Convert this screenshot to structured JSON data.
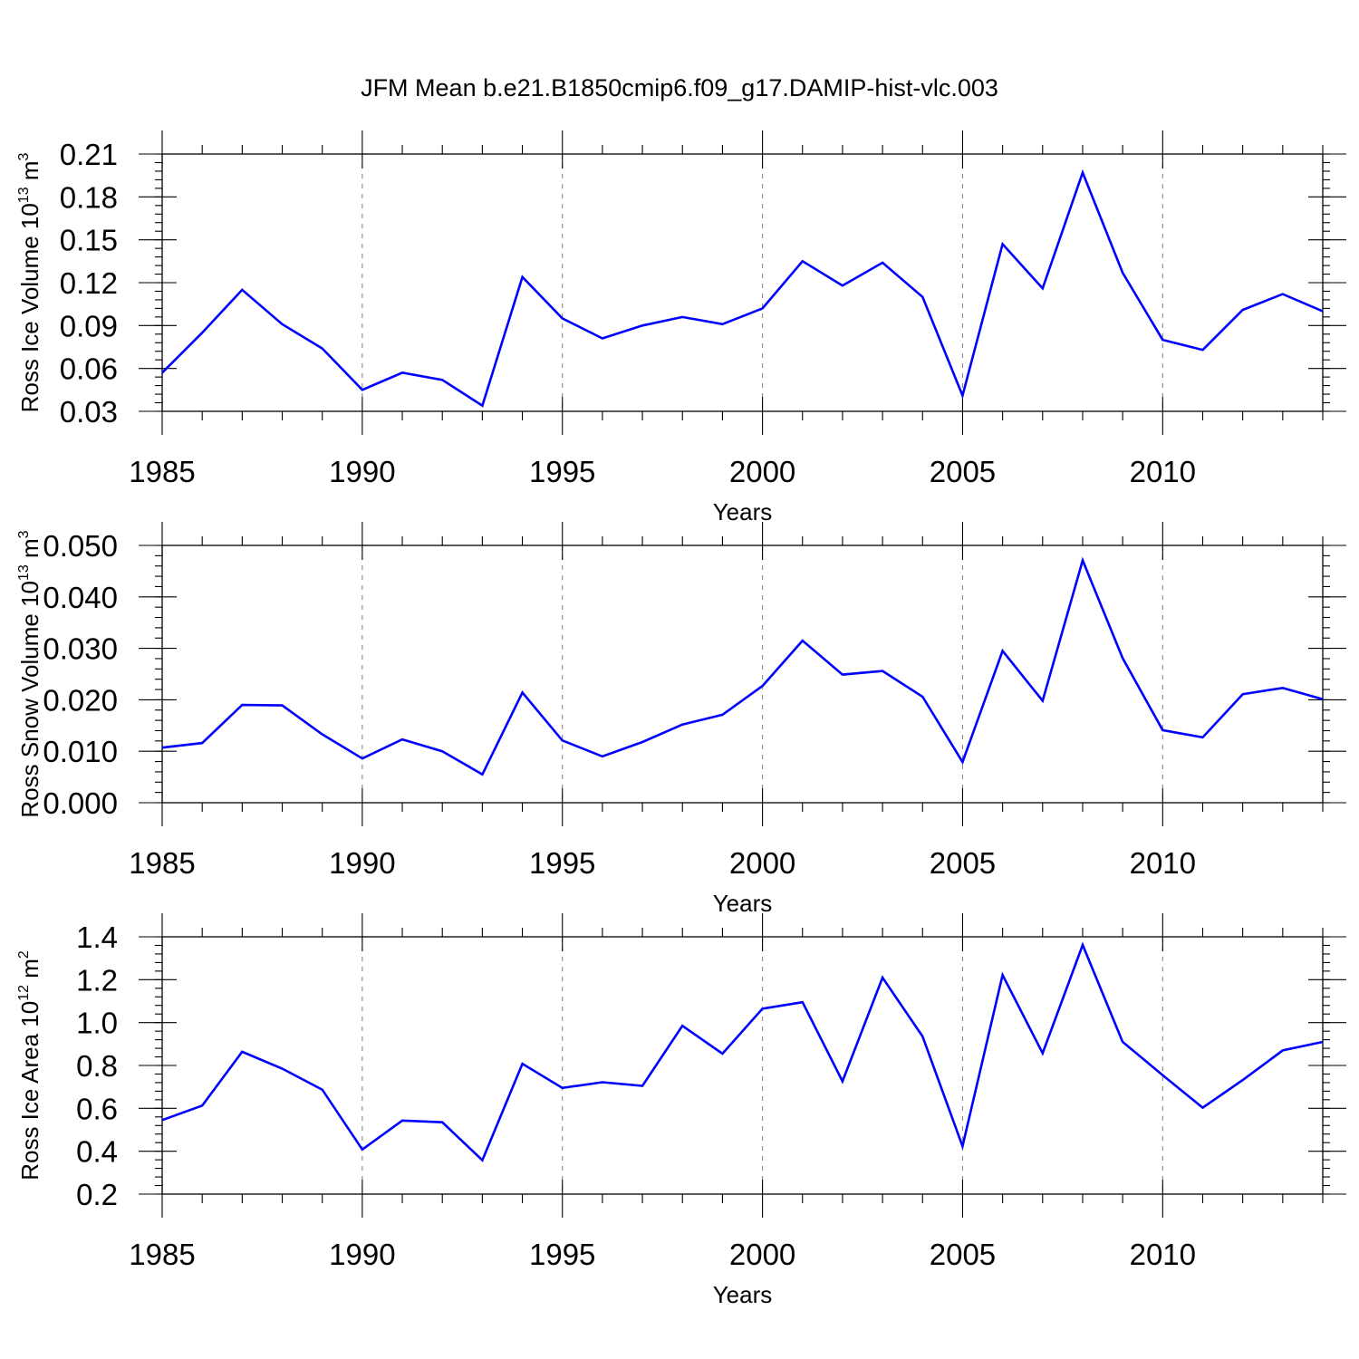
{
  "title": "JFM Mean b.e21.B1850cmip6.f09_g17.DAMIP-hist-vlc.003",
  "colors": {
    "line": "#0000ff",
    "grid": "#8a8a8a",
    "axes": "#000000"
  },
  "chart_data": [
    {
      "type": "line",
      "name": "ice-volume",
      "ylabel": {
        "text": "Ross Ice Volume 10",
        "sup": "13",
        "unit": " m",
        "unit_sup": "3"
      },
      "xlabel": "Years",
      "xlim": [
        1985,
        2014
      ],
      "ylim": [
        0.03,
        0.21
      ],
      "yticks": [
        0.03,
        0.06,
        0.09,
        0.12,
        0.15,
        0.18,
        0.21
      ],
      "ytick_labels": [
        "0.03",
        "0.06",
        "0.09",
        "0.12",
        "0.15",
        "0.18",
        "0.21"
      ],
      "y_minor_step": 0.006,
      "xticks": [
        1985,
        1990,
        1995,
        2000,
        2005,
        2010
      ],
      "xtick_labels": [
        "1985",
        "1990",
        "1995",
        "2000",
        "2005",
        "2010"
      ],
      "x_grid": [
        1990,
        1995,
        2000,
        2005,
        2010
      ],
      "x": [
        1985,
        1986,
        1987,
        1988,
        1989,
        1990,
        1991,
        1992,
        1993,
        1994,
        1995,
        1996,
        1997,
        1998,
        1999,
        2000,
        2001,
        2002,
        2003,
        2004,
        2005,
        2006,
        2007,
        2008,
        2009,
        2010,
        2011,
        2012,
        2013,
        2014
      ],
      "values": [
        0.057,
        0.085,
        0.115,
        0.091,
        0.074,
        0.045,
        0.057,
        0.052,
        0.034,
        0.124,
        0.095,
        0.081,
        0.09,
        0.096,
        0.091,
        0.102,
        0.135,
        0.118,
        0.134,
        0.11,
        0.041,
        0.147,
        0.116,
        0.197,
        0.127,
        0.08,
        0.073,
        0.101,
        0.112,
        0.1
      ]
    },
    {
      "type": "line",
      "name": "snow-volume",
      "ylabel": {
        "text": "Ross Snow Volume 10",
        "sup": "13",
        "unit": " m",
        "unit_sup": "3"
      },
      "xlabel": "Years",
      "xlim": [
        1985,
        2014
      ],
      "ylim": [
        0.0,
        0.05
      ],
      "yticks": [
        0.0,
        0.01,
        0.02,
        0.03,
        0.04,
        0.05
      ],
      "ytick_labels": [
        "0.000",
        "0.010",
        "0.020",
        "0.030",
        "0.040",
        "0.050"
      ],
      "y_minor_step": 0.002,
      "xticks": [
        1985,
        1990,
        1995,
        2000,
        2005,
        2010
      ],
      "xtick_labels": [
        "1985",
        "1990",
        "1995",
        "2000",
        "2005",
        "2010"
      ],
      "x_grid": [
        1990,
        1995,
        2000,
        2005,
        2010
      ],
      "x": [
        1985,
        1986,
        1987,
        1988,
        1989,
        1990,
        1991,
        1992,
        1993,
        1994,
        1995,
        1996,
        1997,
        1998,
        1999,
        2000,
        2001,
        2002,
        2003,
        2004,
        2005,
        2006,
        2007,
        2008,
        2009,
        2010,
        2011,
        2012,
        2013,
        2014
      ],
      "values": [
        0.0107,
        0.0116,
        0.019,
        0.0189,
        0.0133,
        0.0086,
        0.0123,
        0.01,
        0.0055,
        0.0214,
        0.0121,
        0.009,
        0.0118,
        0.0152,
        0.0171,
        0.0227,
        0.0315,
        0.0249,
        0.0256,
        0.0206,
        0.0079,
        0.0295,
        0.0198,
        0.0471,
        0.0281,
        0.0141,
        0.0127,
        0.0211,
        0.0223,
        0.0201
      ]
    },
    {
      "type": "line",
      "name": "ice-area",
      "ylabel": {
        "text": "Ross Ice Area 10",
        "sup": "12",
        "unit": " m",
        "unit_sup": "2"
      },
      "xlabel": "Years",
      "xlim": [
        1985,
        2014
      ],
      "ylim": [
        0.2,
        1.4
      ],
      "yticks": [
        0.2,
        0.4,
        0.6,
        0.8,
        1.0,
        1.2,
        1.4
      ],
      "ytick_labels": [
        "0.2",
        "0.4",
        "0.6",
        "0.8",
        "1.0",
        "1.2",
        "1.4"
      ],
      "y_minor_step": 0.04,
      "xticks": [
        1985,
        1990,
        1995,
        2000,
        2005,
        2010
      ],
      "xtick_labels": [
        "1985",
        "1990",
        "1995",
        "2000",
        "2005",
        "2010"
      ],
      "x_grid": [
        1990,
        1995,
        2000,
        2005,
        2010
      ],
      "x": [
        1985,
        1986,
        1987,
        1988,
        1989,
        1990,
        1991,
        1992,
        1993,
        1994,
        1995,
        1996,
        1997,
        1998,
        1999,
        2000,
        2001,
        2002,
        2003,
        2004,
        2005,
        2006,
        2007,
        2008,
        2009,
        2010,
        2011,
        2012,
        2013,
        2014
      ],
      "values": [
        0.545,
        0.613,
        0.864,
        0.785,
        0.687,
        0.408,
        0.543,
        0.535,
        0.358,
        0.808,
        0.695,
        0.722,
        0.705,
        0.985,
        0.855,
        1.065,
        1.095,
        0.726,
        1.21,
        0.935,
        0.423,
        1.222,
        0.857,
        1.362,
        0.91,
        0.755,
        0.603,
        0.732,
        0.87,
        0.91
      ]
    }
  ]
}
